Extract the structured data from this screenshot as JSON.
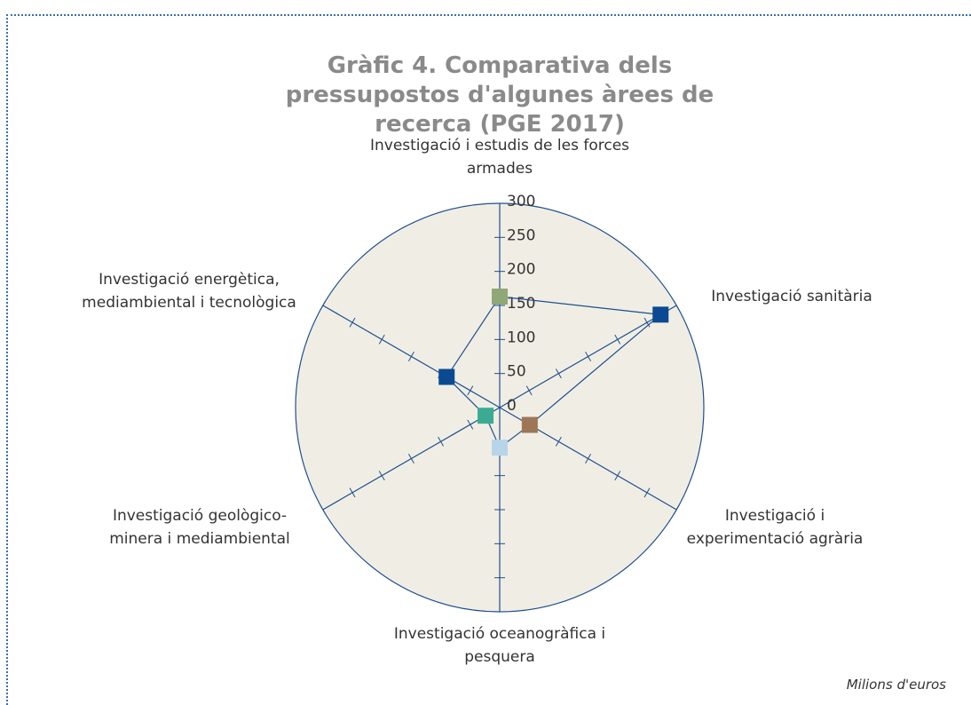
{
  "chart_data": {
    "type": "radar",
    "title": "Gràfic 4. Comparativa dels pressupostos d'algunes àrees de recerca (PGE 2017)",
    "note": "Milions d'euros",
    "categories": [
      "Investigació i estudis de les forces armades",
      "Investigació sanitària",
      "Investigació i experimentació agrària",
      "Investigació oceanogràfica i pesquera",
      "Investigació geològico-minera i mediambiental",
      "Investigació energètica, mediambiental i tecnològica"
    ],
    "values": [
      163,
      273,
      51,
      59,
      24,
      90
    ],
    "colors": [
      "#8fa876",
      "#0b4a92",
      "#9c7656",
      "#b7d4e8",
      "#3aab92",
      "#0b4a92"
    ],
    "line_color": "#1f4f8f",
    "background": "#f0eee4",
    "ylim": [
      0,
      300
    ],
    "yticks": [
      0,
      50,
      100,
      150,
      200,
      250,
      300
    ]
  }
}
